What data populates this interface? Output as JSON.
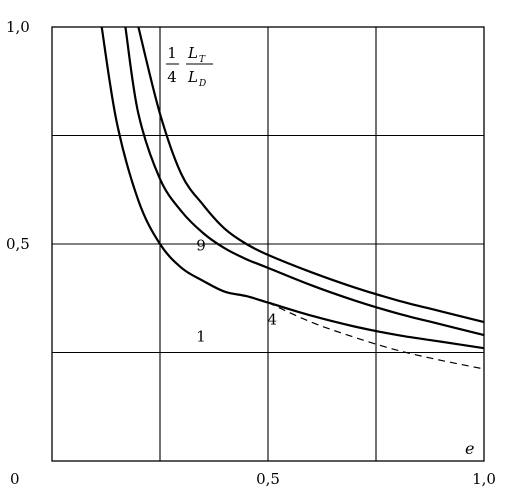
{
  "chart_data": {
    "type": "line",
    "xlim": [
      0,
      1.0
    ],
    "ylim": [
      0,
      1.0
    ],
    "grid": true,
    "x_ticks": [
      {
        "value": 0,
        "label": "0"
      },
      {
        "value": 0.5,
        "label": "0,5"
      },
      {
        "value": 1.0,
        "label": "1,0"
      }
    ],
    "y_ticks": [
      {
        "value": 0.5,
        "label": "0,5"
      },
      {
        "value": 1.0,
        "label": "1,0"
      }
    ],
    "xlabel": "e",
    "ylabel": {
      "numerator": "1",
      "denominator": "4",
      "top_main": "L",
      "top_sub": "T",
      "bottom_main": "L",
      "bottom_sub": "D"
    },
    "series": [
      {
        "name": "1",
        "style": "solid",
        "x": [
          0.115,
          0.15,
          0.2,
          0.25,
          0.3,
          0.35,
          0.4,
          0.45,
          0.5,
          0.6,
          0.7,
          0.8,
          0.9,
          1.0
        ],
        "y": [
          1.0,
          0.78,
          0.6,
          0.5,
          0.445,
          0.415,
          0.39,
          0.38,
          0.365,
          0.335,
          0.31,
          0.29,
          0.275,
          0.26
        ]
      },
      {
        "name": "4",
        "style": "solid",
        "x": [
          0.17,
          0.2,
          0.25,
          0.3,
          0.35,
          0.4,
          0.45,
          0.5,
          0.6,
          0.7,
          0.8,
          0.9,
          1.0
        ],
        "y": [
          1.0,
          0.8,
          0.65,
          0.575,
          0.525,
          0.49,
          0.465,
          0.445,
          0.405,
          0.37,
          0.34,
          0.315,
          0.29
        ]
      },
      {
        "name": "9",
        "style": "solid",
        "x": [
          0.2,
          0.25,
          0.3,
          0.35,
          0.4,
          0.45,
          0.5,
          0.6,
          0.7,
          0.8,
          0.9,
          1.0
        ],
        "y": [
          1.0,
          0.8,
          0.66,
          0.59,
          0.535,
          0.5,
          0.475,
          0.435,
          0.4,
          0.37,
          0.345,
          0.32
        ]
      },
      {
        "name": "",
        "style": "dashed",
        "x": [
          0.5,
          0.6,
          0.7,
          0.8,
          0.9,
          1.0
        ],
        "y": [
          0.365,
          0.32,
          0.285,
          0.255,
          0.232,
          0.212
        ]
      }
    ],
    "annotations": [
      {
        "text": "1",
        "x": 0.345,
        "y": 0.275
      },
      {
        "text": "4",
        "x": 0.51,
        "y": 0.315
      },
      {
        "text": "9",
        "x": 0.345,
        "y": 0.485
      }
    ]
  }
}
